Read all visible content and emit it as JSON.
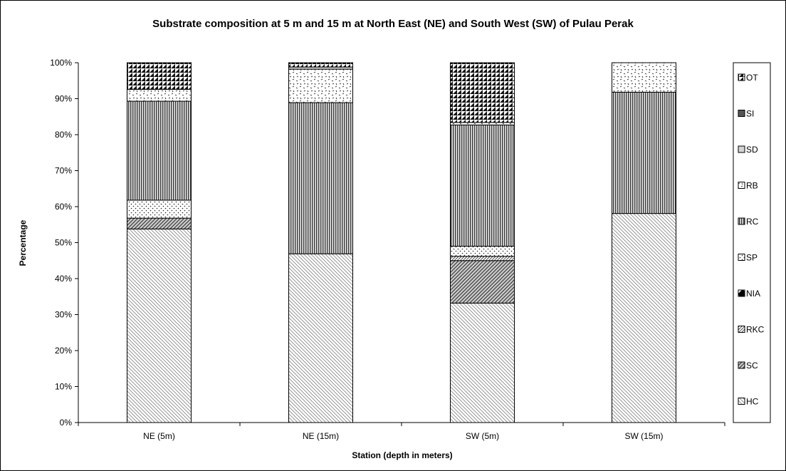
{
  "chart_data": {
    "type": "bar",
    "stacked": true,
    "percent": true,
    "title": "Substrate composition at 5 m and 15 m at North East (NE) and South West (SW) of Pulau Perak",
    "xlabel": "Station (depth in meters)",
    "ylabel": "Percentage",
    "ylim": [
      0,
      100
    ],
    "yticks": [
      "0%",
      "10%",
      "20%",
      "30%",
      "40%",
      "50%",
      "60%",
      "70%",
      "80%",
      "90%",
      "100%"
    ],
    "categories": [
      "NE (5m)",
      "NE (15m)",
      "SW (5m)",
      "SW (15m)"
    ],
    "legend_position": "right",
    "series": [
      {
        "name": "HC",
        "pattern": "hatch-fine-back",
        "values": [
          53.8,
          46.9,
          33.2,
          58.1
        ]
      },
      {
        "name": "SC",
        "pattern": "hatch-dense-forward",
        "values": [
          3.0,
          0,
          11.8,
          0
        ]
      },
      {
        "name": "RKC",
        "pattern": "hatch-thin",
        "values": [
          0,
          0,
          1.2,
          0
        ]
      },
      {
        "name": "NIA",
        "pattern": "diamond-dark",
        "values": [
          0,
          0,
          0,
          0
        ]
      },
      {
        "name": "SP",
        "pattern": "dots",
        "values": [
          5.0,
          0,
          2.8,
          0
        ]
      },
      {
        "name": "RC",
        "pattern": "vertical-lines",
        "values": [
          27.5,
          42.0,
          33.7,
          33.7
        ]
      },
      {
        "name": "RB",
        "pattern": "confetti",
        "values": [
          3.3,
          9.3,
          0.7,
          8.2
        ]
      },
      {
        "name": "SD",
        "pattern": "light-gray",
        "values": [
          0,
          0.6,
          0,
          0
        ]
      },
      {
        "name": "SI",
        "pattern": "dark-gray",
        "values": [
          0,
          0,
          0,
          0
        ]
      },
      {
        "name": "OT",
        "pattern": "checker",
        "values": [
          7.4,
          1.2,
          16.6,
          0
        ]
      }
    ],
    "legend_order": [
      "OT",
      "SI",
      "SD",
      "RB",
      "RC",
      "SP",
      "NIA",
      "RKC",
      "SC",
      "HC"
    ]
  }
}
